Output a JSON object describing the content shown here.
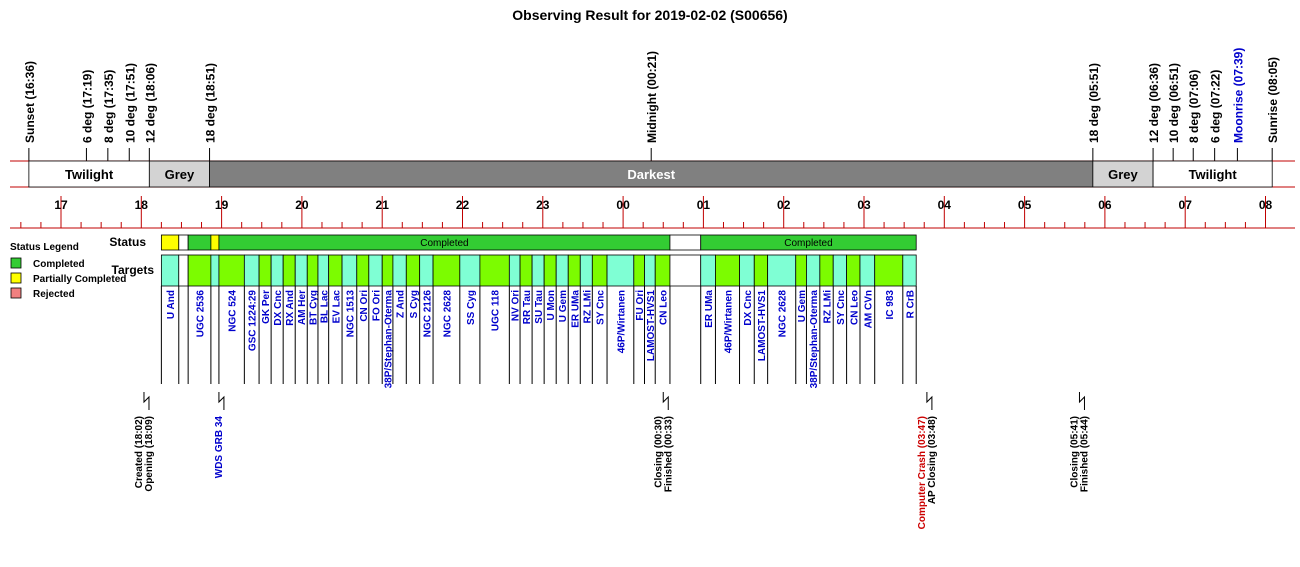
{
  "chart_data": {
    "type": "timeline",
    "title": "Observing Result for 2019-02-02 (S00656)",
    "twilight_events": [
      {
        "label": "Sunset (16:36)",
        "time": "16:36",
        "color": "#000000"
      },
      {
        "label": "6 deg (17:19)",
        "time": "17:19",
        "color": "#000000"
      },
      {
        "label": "8 deg (17:35)",
        "time": "17:35",
        "color": "#000000"
      },
      {
        "label": "10 deg (17:51)",
        "time": "17:51",
        "color": "#000000"
      },
      {
        "label": "12 deg (18:06)",
        "time": "18:06",
        "color": "#000000"
      },
      {
        "label": "18 deg (18:51)",
        "time": "18:51",
        "color": "#000000"
      },
      {
        "label": "Midnight (00:21)",
        "time": "00:21",
        "color": "#000000"
      },
      {
        "label": "18 deg (05:51)",
        "time": "05:51",
        "color": "#000000"
      },
      {
        "label": "12 deg (06:36)",
        "time": "06:36",
        "color": "#000000"
      },
      {
        "label": "10 deg (06:51)",
        "time": "06:51",
        "color": "#000000"
      },
      {
        "label": "8 deg (07:06)",
        "time": "07:06",
        "color": "#000000"
      },
      {
        "label": "6 deg (07:22)",
        "time": "07:22",
        "color": "#000000"
      },
      {
        "label": "Moonrise (07:39)",
        "time": "07:39",
        "color": "#0000cc"
      },
      {
        "label": "Sunrise (08:05)",
        "time": "08:05",
        "color": "#000000"
      }
    ],
    "sky_bands": [
      {
        "label": "Twilight",
        "start": "16:36",
        "end": "18:06",
        "fill": "#ffffff"
      },
      {
        "label": "Grey",
        "start": "18:06",
        "end": "18:51",
        "fill": "#d3d3d3"
      },
      {
        "label": "Darkest",
        "start": "18:51",
        "end": "05:51",
        "fill": "#808080"
      },
      {
        "label": "Grey",
        "start": "05:51",
        "end": "06:36",
        "fill": "#d3d3d3"
      },
      {
        "label": "Twilight",
        "start": "06:36",
        "end": "08:05",
        "fill": "#ffffff"
      }
    ],
    "hour_ticks": [
      "17",
      "18",
      "19",
      "20",
      "21",
      "22",
      "23",
      "00",
      "01",
      "02",
      "03",
      "04",
      "05",
      "06",
      "07",
      "08"
    ],
    "row_labels": {
      "status": "Status",
      "targets": "Targets"
    },
    "legend": {
      "title": "Status Legend",
      "items": [
        {
          "label": "Completed",
          "color": "#33cc33"
        },
        {
          "label": "Partially Completed",
          "color": "#ffff00"
        },
        {
          "label": "Rejected",
          "color": "#f08080"
        }
      ]
    },
    "status_segments": [
      {
        "start": "18:15",
        "end": "18:28",
        "status": "partial",
        "label": ""
      },
      {
        "start": "18:28",
        "end": "18:35",
        "status": "none",
        "label": ""
      },
      {
        "start": "18:35",
        "end": "18:52",
        "status": "completed",
        "label": ""
      },
      {
        "start": "18:52",
        "end": "18:58",
        "status": "partial",
        "label": ""
      },
      {
        "start": "18:58",
        "end": "00:35",
        "status": "completed",
        "label": "Completed"
      },
      {
        "start": "00:35",
        "end": "00:58",
        "status": "none",
        "label": ""
      },
      {
        "start": "00:58",
        "end": "03:39",
        "status": "completed",
        "label": "Completed"
      }
    ],
    "targets": [
      {
        "name": "U And",
        "start": "18:15",
        "end": "18:28",
        "color": "#7fffd4"
      },
      {
        "name": "",
        "start": "18:28",
        "end": "18:35",
        "color": "#ffffff"
      },
      {
        "name": "UGC 2536",
        "start": "18:35",
        "end": "18:52",
        "color": "#7cfc00"
      },
      {
        "name": "",
        "start": "18:52",
        "end": "18:58",
        "color": "#7fffd4"
      },
      {
        "name": "NGC 524",
        "start": "18:58",
        "end": "19:17",
        "color": "#7cfc00"
      },
      {
        "name": "GSC 1224:29",
        "start": "19:17",
        "end": "19:28",
        "color": "#7fffd4"
      },
      {
        "name": "GK Per",
        "start": "19:28",
        "end": "19:37",
        "color": "#7cfc00"
      },
      {
        "name": "DX Cnc",
        "start": "19:37",
        "end": "19:46",
        "color": "#7fffd4"
      },
      {
        "name": "RX And",
        "start": "19:46",
        "end": "19:55",
        "color": "#7cfc00"
      },
      {
        "name": "AM Her",
        "start": "19:55",
        "end": "20:04",
        "color": "#7fffd4"
      },
      {
        "name": "BT Cyg",
        "start": "20:04",
        "end": "20:12",
        "color": "#7cfc00"
      },
      {
        "name": "BL Lac",
        "start": "20:12",
        "end": "20:20",
        "color": "#7fffd4"
      },
      {
        "name": "EV Lac",
        "start": "20:20",
        "end": "20:30",
        "color": "#7cfc00"
      },
      {
        "name": "NGC 1513",
        "start": "20:30",
        "end": "20:41",
        "color": "#7fffd4"
      },
      {
        "name": "CN Ori",
        "start": "20:41",
        "end": "20:50",
        "color": "#7cfc00"
      },
      {
        "name": "FO Ori",
        "start": "20:50",
        "end": "21:00",
        "color": "#7fffd4"
      },
      {
        "name": "38P/Stephan-Oterma",
        "start": "21:00",
        "end": "21:08",
        "color": "#7cfc00"
      },
      {
        "name": "Z And",
        "start": "21:08",
        "end": "21:18",
        "color": "#7fffd4"
      },
      {
        "name": "S Cyg",
        "start": "21:18",
        "end": "21:28",
        "color": "#7cfc00"
      },
      {
        "name": "NGC 2126",
        "start": "21:28",
        "end": "21:38",
        "color": "#7fffd4"
      },
      {
        "name": "NGC 2628",
        "start": "21:38",
        "end": "21:58",
        "color": "#7cfc00"
      },
      {
        "name": "SS Cyg",
        "start": "21:58",
        "end": "22:13",
        "color": "#7fffd4"
      },
      {
        "name": "UGC 118",
        "start": "22:13",
        "end": "22:35",
        "color": "#7cfc00"
      },
      {
        "name": "NV Ori",
        "start": "22:35",
        "end": "22:43",
        "color": "#7fffd4"
      },
      {
        "name": "RR Tau",
        "start": "22:43",
        "end": "22:52",
        "color": "#7cfc00"
      },
      {
        "name": "SU Tau",
        "start": "22:52",
        "end": "23:01",
        "color": "#7fffd4"
      },
      {
        "name": "U Mon",
        "start": "23:01",
        "end": "23:10",
        "color": "#7cfc00"
      },
      {
        "name": "U Gem",
        "start": "23:10",
        "end": "23:19",
        "color": "#7fffd4"
      },
      {
        "name": "ER UMa",
        "start": "23:19",
        "end": "23:28",
        "color": "#7cfc00"
      },
      {
        "name": "RZ LMi",
        "start": "23:28",
        "end": "23:37",
        "color": "#7fffd4"
      },
      {
        "name": "SY Cnc",
        "start": "23:37",
        "end": "23:48",
        "color": "#7cfc00"
      },
      {
        "name": "46P/Wirtanen",
        "start": "23:48",
        "end": "00:08",
        "color": "#7fffd4"
      },
      {
        "name": "FU Ori",
        "start": "00:08",
        "end": "00:16",
        "color": "#7cfc00"
      },
      {
        "name": "LAMOST-HVS1",
        "start": "00:16",
        "end": "00:24",
        "color": "#7fffd4"
      },
      {
        "name": "CN Leo",
        "start": "00:24",
        "end": "00:35",
        "color": "#7cfc00"
      },
      {
        "name": "",
        "start": "00:35",
        "end": "00:58",
        "color": "#ffffff"
      },
      {
        "name": "ER UMa",
        "start": "00:58",
        "end": "01:09",
        "color": "#7fffd4"
      },
      {
        "name": "46P/Wirtanen",
        "start": "01:09",
        "end": "01:27",
        "color": "#7cfc00"
      },
      {
        "name": "DX Cnc",
        "start": "01:27",
        "end": "01:38",
        "color": "#7fffd4"
      },
      {
        "name": "LAMOST-HVS1",
        "start": "01:38",
        "end": "01:48",
        "color": "#7cfc00"
      },
      {
        "name": "NGC 2628",
        "start": "01:48",
        "end": "02:09",
        "color": "#7fffd4"
      },
      {
        "name": "U Gem",
        "start": "02:09",
        "end": "02:17",
        "color": "#7cfc00"
      },
      {
        "name": "38P/Stephan-Oterma",
        "start": "02:17",
        "end": "02:27",
        "color": "#7fffd4"
      },
      {
        "name": "RZ LMi",
        "start": "02:27",
        "end": "02:37",
        "color": "#7cfc00"
      },
      {
        "name": "SY Cnc",
        "start": "02:37",
        "end": "02:47",
        "color": "#7fffd4"
      },
      {
        "name": "CN Leo",
        "start": "02:47",
        "end": "02:57",
        "color": "#7cfc00"
      },
      {
        "name": "AM CVn",
        "start": "02:57",
        "end": "03:08",
        "color": "#7fffd4"
      },
      {
        "name": "IC 983",
        "start": "03:08",
        "end": "03:29",
        "color": "#7cfc00"
      },
      {
        "name": "R CrB",
        "start": "03:29",
        "end": "03:39",
        "color": "#7fffd4"
      }
    ],
    "events": [
      {
        "time": "18:02",
        "lines": [
          {
            "text": "Created (18:02)",
            "color": "#000000"
          },
          {
            "text": "Opening (18:09)",
            "color": "#000000"
          }
        ]
      },
      {
        "time": "18:58",
        "lines": [
          {
            "text": "WDS GRB 34",
            "color": "#0000cc"
          }
        ]
      },
      {
        "time": "00:30",
        "lines": [
          {
            "text": "Closing (00:30)",
            "color": "#000000"
          },
          {
            "text": "Finished (00:33)",
            "color": "#000000"
          }
        ]
      },
      {
        "time": "03:47",
        "lines": [
          {
            "text": "Computer Crash (03:47)",
            "color": "#cc0000"
          },
          {
            "text": "AP Closing (03:48)",
            "color": "#000000"
          }
        ]
      },
      {
        "time": "05:41",
        "lines": [
          {
            "text": "Closing (05:41)",
            "color": "#000000"
          },
          {
            "text": "Finished (05:44)",
            "color": "#000000"
          }
        ]
      }
    ]
  }
}
